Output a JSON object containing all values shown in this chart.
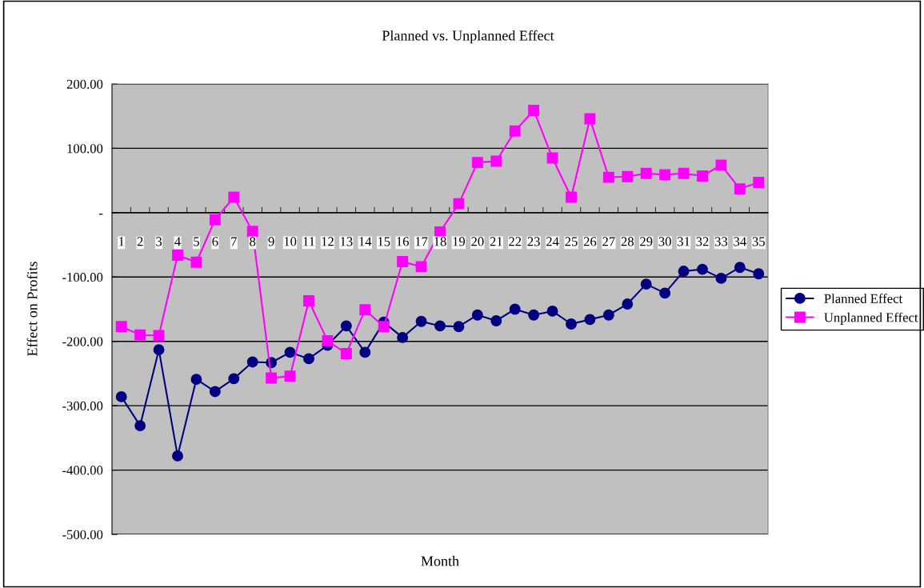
{
  "chart_data": {
    "type": "line",
    "title": "Planned vs. Unplanned Effect",
    "xlabel": "Month",
    "ylabel": "Effect on Profits",
    "categories": [
      "1",
      "2",
      "3",
      "4",
      "5",
      "6",
      "7",
      "8",
      "9",
      "10",
      "11",
      "12",
      "13",
      "14",
      "15",
      "16",
      "17",
      "18",
      "19",
      "20",
      "21",
      "22",
      "23",
      "24",
      "25",
      "26",
      "27",
      "28",
      "29",
      "30",
      "31",
      "32",
      "33",
      "34",
      "35"
    ],
    "series": [
      {
        "name": "Planned Effect",
        "color": "#000080",
        "marker": "circle",
        "values": [
          -286,
          -331,
          -213,
          -378,
          -259,
          -278,
          -258,
          -232,
          -233,
          -217,
          -227,
          -206,
          -176,
          -217,
          -170,
          -194,
          -169,
          -176,
          -177,
          -159,
          -168,
          -150,
          -159,
          -153,
          -173,
          -166,
          -159,
          -142,
          -111,
          -125,
          -91,
          -88,
          -102,
          -85,
          -95
        ]
      },
      {
        "name": "Unplanned Effect",
        "color": "#ff00ff",
        "marker": "square",
        "values": [
          -177,
          -190,
          -191,
          -66,
          -77,
          -11,
          24,
          -29,
          -257,
          -254,
          -137,
          -199,
          -219,
          -151,
          -177,
          -76,
          -84,
          -30,
          14,
          78,
          80,
          127,
          159,
          85,
          24,
          146,
          55,
          56,
          61,
          59,
          61,
          57,
          74,
          37,
          47
        ]
      }
    ],
    "ylim": [
      -500,
      200
    ],
    "yticks": [
      {
        "value": -500,
        "label": "-500.00"
      },
      {
        "value": -400,
        "label": "-400.00"
      },
      {
        "value": -300,
        "label": "-300.00"
      },
      {
        "value": -200,
        "label": "-200.00"
      },
      {
        "value": -100,
        "label": "-100.00"
      },
      {
        "value": 0,
        "label": "-"
      },
      {
        "value": 100,
        "label": "100.00"
      },
      {
        "value": 200,
        "label": "200.00"
      }
    ],
    "grid": "y",
    "legend": "right",
    "line_style": "solid"
  }
}
